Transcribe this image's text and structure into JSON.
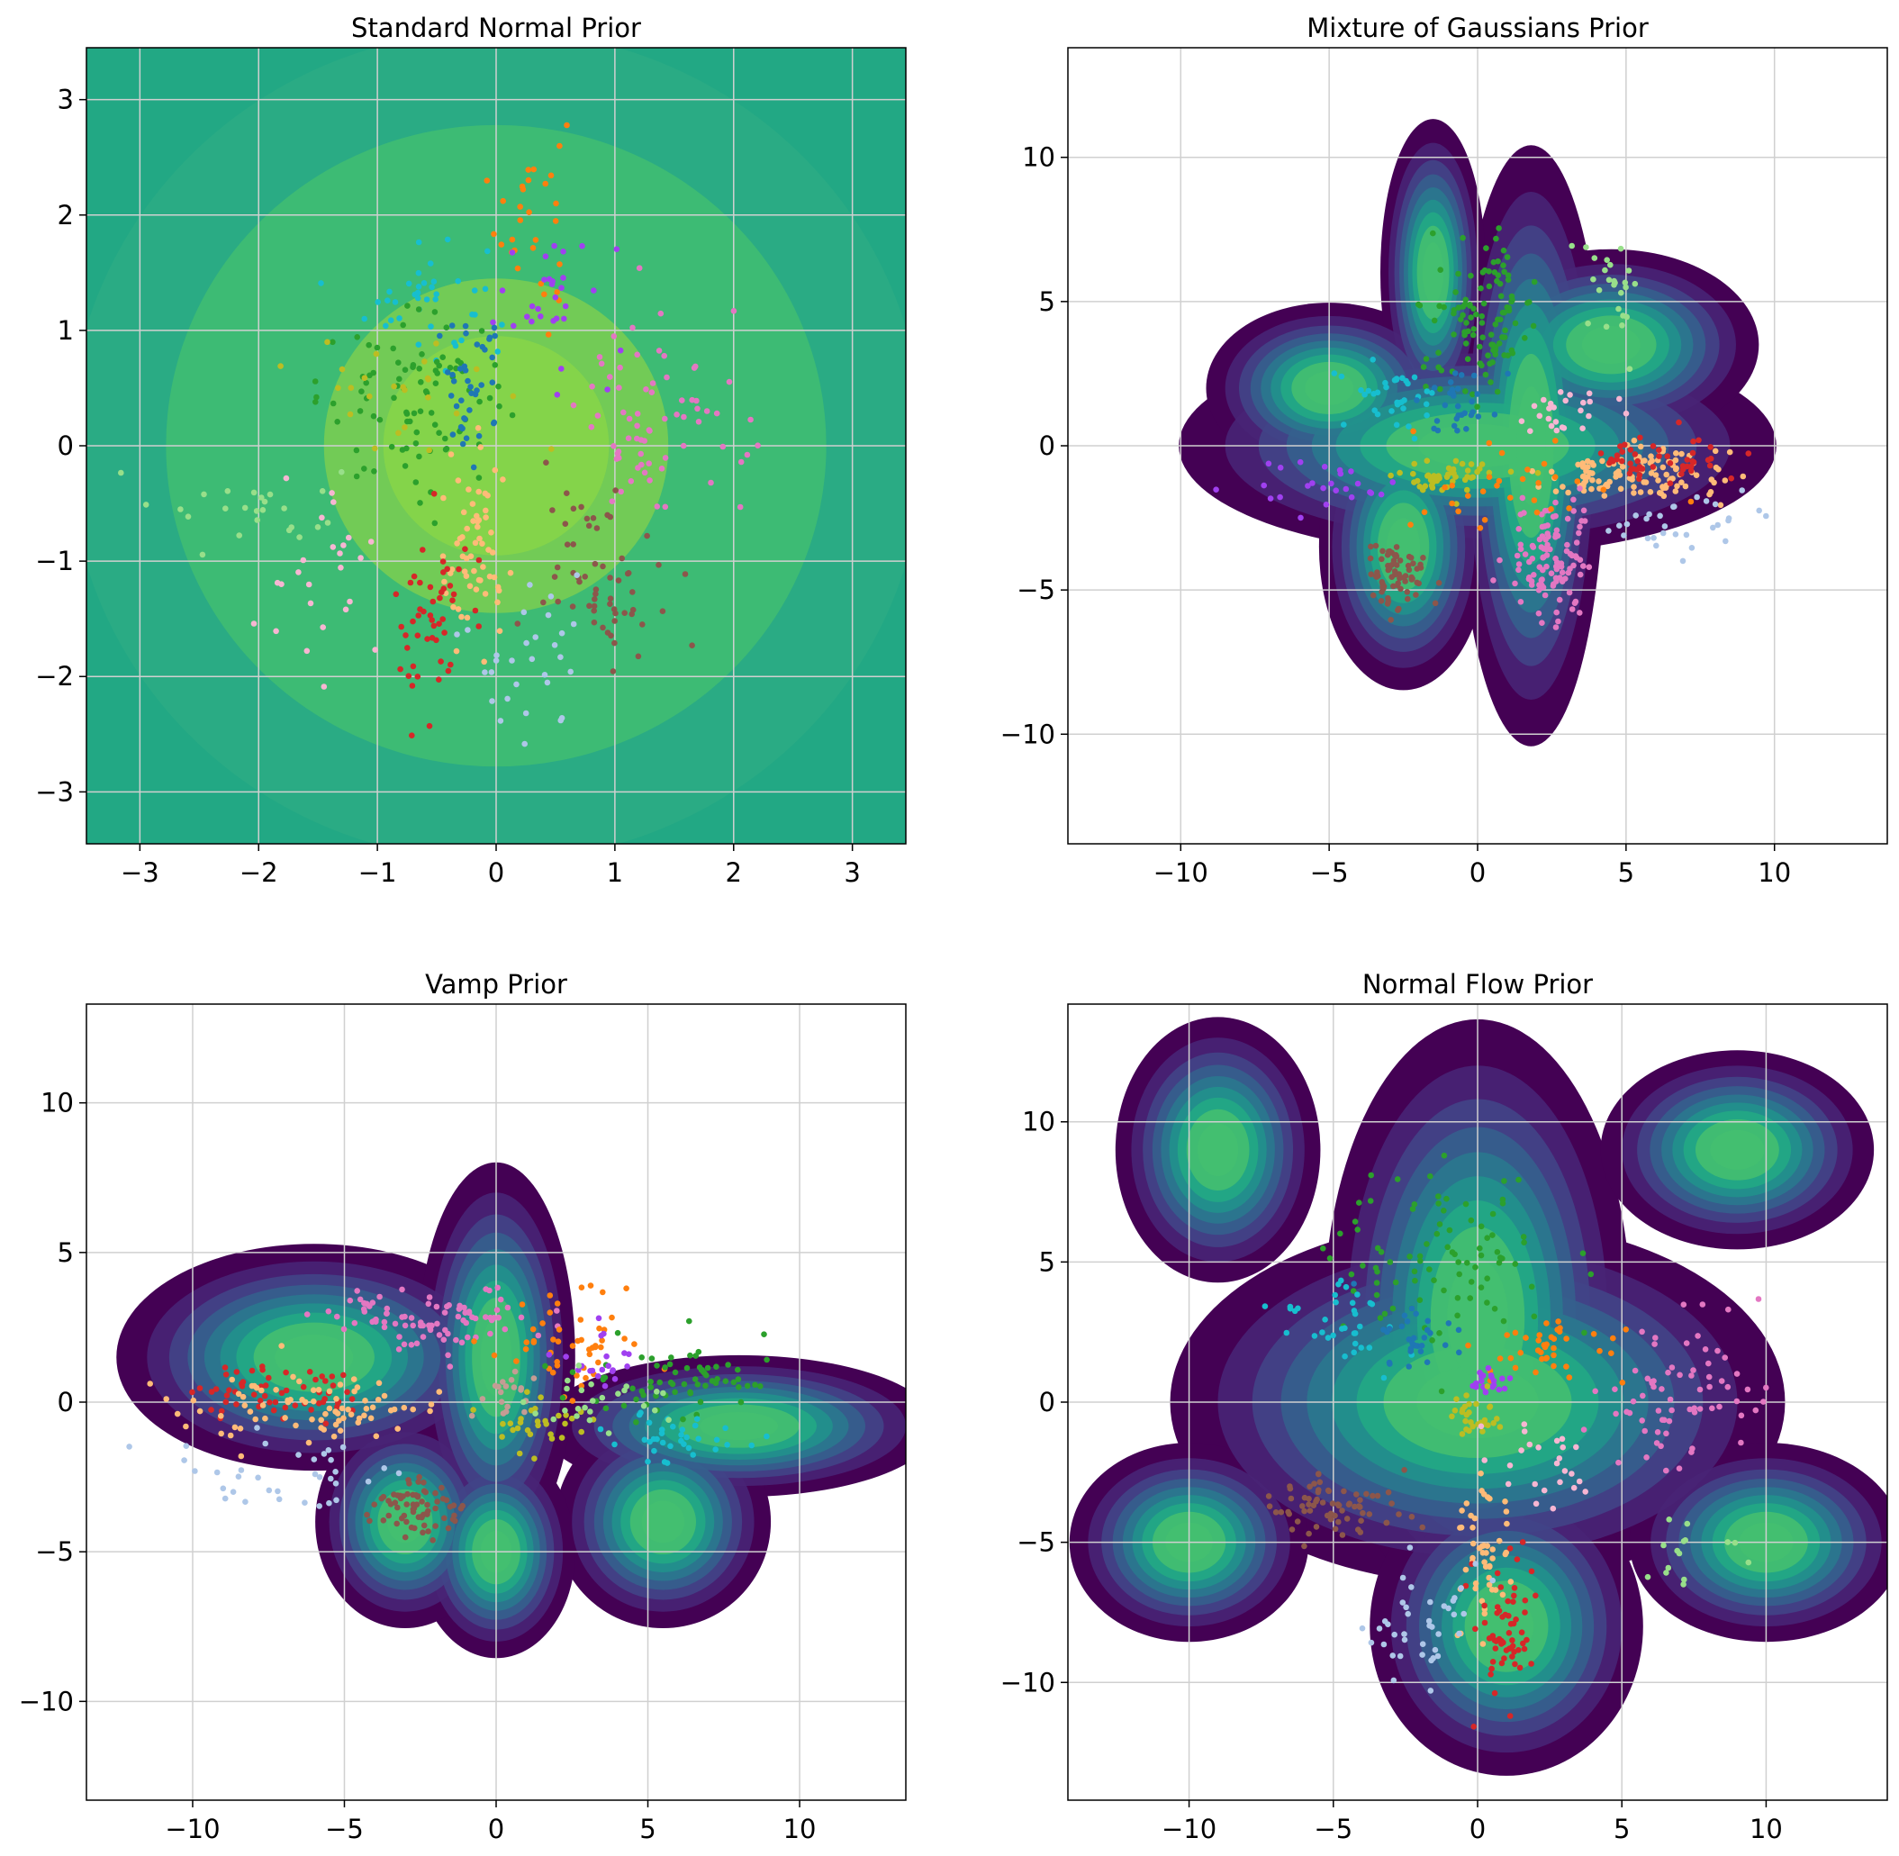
{
  "colors": {
    "viridis": [
      "#440154",
      "#482475",
      "#414487",
      "#355f8d",
      "#2a788e",
      "#21918c",
      "#22a884",
      "#44bf70",
      "#7ad151",
      "#bddf26"
    ],
    "clusters": [
      "#1f77b4",
      "#ff7f0e",
      "#2ca02c",
      "#d62728",
      "#9467bd",
      "#8c564b",
      "#e377c2",
      "#bcbd22",
      "#17becf",
      "#aec7e8",
      "#ffbb78",
      "#98df8a",
      "#f7b6d2",
      "#a040f0",
      "#c49c94"
    ]
  },
  "chart_data": [
    {
      "id": "standard-normal",
      "type": "scatter",
      "title": "Standard Normal Prior",
      "xlim": [
        -3.45,
        3.45
      ],
      "ylim": [
        -3.45,
        3.45
      ],
      "xticks": [
        -3,
        -2,
        -1,
        0,
        1,
        2,
        3
      ],
      "yticks": [
        -3,
        -2,
        -1,
        0,
        1,
        2,
        3
      ],
      "grid": true,
      "density": {
        "background": "#22a884",
        "levels": [
          {
            "r": 3.6,
            "color": "#2aab84"
          },
          {
            "r": 2.78,
            "color": "#3dbb74"
          },
          {
            "r": 1.45,
            "color": "#72cb56"
          },
          {
            "r": 0.95,
            "color": "#84d44a"
          }
        ]
      },
      "clusters": [
        {
          "color": "#ff7f0e",
          "cx": 0.3,
          "cy": 2.0,
          "sx": 0.15,
          "sy": 0.5,
          "n": 30
        },
        {
          "color": "#a040f0",
          "cx": 0.5,
          "cy": 1.3,
          "sx": 0.3,
          "sy": 0.3,
          "n": 30
        },
        {
          "color": "#17becf",
          "cx": -0.6,
          "cy": 1.3,
          "sx": 0.25,
          "sy": 0.3,
          "n": 40
        },
        {
          "color": "#2ca02c",
          "cx": -0.7,
          "cy": 0.4,
          "sx": 0.4,
          "sy": 0.35,
          "n": 90
        },
        {
          "color": "#1f77b4",
          "cx": -0.2,
          "cy": 0.5,
          "sx": 0.15,
          "sy": 0.3,
          "n": 40
        },
        {
          "color": "#e377c2",
          "cx": 1.4,
          "cy": 0.2,
          "sx": 0.35,
          "sy": 0.45,
          "n": 70
        },
        {
          "color": "#8c564b",
          "cx": 0.9,
          "cy": -1.1,
          "sx": 0.25,
          "sy": 0.35,
          "n": 60
        },
        {
          "color": "#ffbb78",
          "cx": -0.2,
          "cy": -1.0,
          "sx": 0.15,
          "sy": 0.45,
          "n": 60
        },
        {
          "color": "#d62728",
          "cx": -0.55,
          "cy": -1.5,
          "sx": 0.15,
          "sy": 0.45,
          "n": 50
        },
        {
          "color": "#aec7e8",
          "cx": 0.3,
          "cy": -1.8,
          "sx": 0.3,
          "sy": 0.4,
          "n": 30
        },
        {
          "color": "#98df8a",
          "cx": -2.0,
          "cy": -0.5,
          "sx": 0.4,
          "sy": 0.2,
          "n": 25
        },
        {
          "color": "#f7b6d2",
          "cx": -1.5,
          "cy": -1.1,
          "sx": 0.4,
          "sy": 0.4,
          "n": 25
        },
        {
          "color": "#bcbd22",
          "cx": -1.0,
          "cy": 0.6,
          "sx": 0.5,
          "sy": 0.3,
          "n": 25
        }
      ]
    },
    {
      "id": "mixture-of-gaussians",
      "type": "scatter",
      "title": "Mixture of Gaussians Prior",
      "xlim": [
        -13.8,
        13.8
      ],
      "ylim": [
        -13.8,
        13.8
      ],
      "xticks": [
        -10,
        -5,
        0,
        5,
        10
      ],
      "yticks": [
        -10,
        -5,
        0,
        5,
        10
      ],
      "grid": true,
      "density": {
        "components": [
          {
            "x": 0,
            "y": 0,
            "sx": 8.5,
            "sy": 3.2
          },
          {
            "x": 1.8,
            "y": 0,
            "sx": 2.1,
            "sy": 8.8
          },
          {
            "x": 4.5,
            "y": 3.5,
            "sx": 4.2,
            "sy": 2.8
          },
          {
            "x": -2.5,
            "y": -3.5,
            "sx": 2.4,
            "sy": 4.2
          },
          {
            "x": -5,
            "y": 2,
            "sx": 3.5,
            "sy": 2.5
          },
          {
            "x": -1.5,
            "y": 6,
            "sx": 1.5,
            "sy": 4.5
          }
        ]
      },
      "clusters": [
        {
          "color": "#2ca02c",
          "cx": 0.2,
          "cy": 4.5,
          "sx": 0.9,
          "sy": 1.3,
          "n": 110
        },
        {
          "color": "#98df8a",
          "cx": 4.5,
          "cy": 5.5,
          "sx": 0.5,
          "sy": 0.8,
          "n": 25
        },
        {
          "color": "#17becf",
          "cx": -2.8,
          "cy": 1.8,
          "sx": 1.0,
          "sy": 0.6,
          "n": 35
        },
        {
          "color": "#1f77b4",
          "cx": -0.5,
          "cy": 1.5,
          "sx": 0.5,
          "sy": 0.6,
          "n": 30
        },
        {
          "color": "#ffbb78",
          "cx": 5.0,
          "cy": -1.0,
          "sx": 1.6,
          "sy": 0.5,
          "n": 120
        },
        {
          "color": "#d62728",
          "cx": 6.0,
          "cy": -0.5,
          "sx": 1.3,
          "sy": 0.4,
          "n": 50
        },
        {
          "color": "#e377c2",
          "cx": 2.5,
          "cy": -4.0,
          "sx": 0.7,
          "sy": 1.0,
          "n": 110
        },
        {
          "color": "#8c564b",
          "cx": -2.8,
          "cy": -4.5,
          "sx": 0.5,
          "sy": 0.7,
          "n": 70
        },
        {
          "color": "#bcbd22",
          "cx": -1.0,
          "cy": -1.1,
          "sx": 0.8,
          "sy": 0.25,
          "n": 50
        },
        {
          "color": "#ff7f0e",
          "cx": 0.5,
          "cy": -1.5,
          "sx": 1.8,
          "sy": 0.8,
          "n": 30
        },
        {
          "color": "#a040f0",
          "cx": -5.0,
          "cy": -1.2,
          "sx": 1.8,
          "sy": 0.4,
          "n": 25
        },
        {
          "color": "#aec7e8",
          "cx": 7.0,
          "cy": -2.8,
          "sx": 1.2,
          "sy": 0.5,
          "n": 30
        },
        {
          "color": "#f7b6d2",
          "cx": 3.0,
          "cy": 1.2,
          "sx": 1.0,
          "sy": 0.6,
          "n": 25
        }
      ]
    },
    {
      "id": "vamp",
      "type": "scatter",
      "title": "Vamp Prior",
      "xlim": [
        -13.5,
        13.5
      ],
      "ylim": [
        -13.3,
        13.3
      ],
      "xticks": [
        -10,
        -5,
        0,
        5,
        10
      ],
      "yticks": [
        -10,
        -5,
        0,
        5,
        10
      ],
      "grid": true,
      "density": {
        "components": [
          {
            "x": -6,
            "y": 1.5,
            "sx": 5.5,
            "sy": 3.2
          },
          {
            "x": 8,
            "y": -0.8,
            "sx": 5.5,
            "sy": 2.0
          },
          {
            "x": 0,
            "y": 1.5,
            "sx": 2.2,
            "sy": 5.5
          },
          {
            "x": 5.5,
            "y": -4,
            "sx": 3.0,
            "sy": 3.0
          },
          {
            "x": 0,
            "y": -5,
            "sx": 2.2,
            "sy": 3.0
          },
          {
            "x": -3,
            "y": -4,
            "sx": 2.5,
            "sy": 3.0
          }
        ]
      },
      "clusters": [
        {
          "color": "#e377c2",
          "cx": -2.0,
          "cy": 2.8,
          "sx": 1.8,
          "sy": 0.5,
          "n": 90
        },
        {
          "color": "#ff7f0e",
          "cx": 2.5,
          "cy": 2.0,
          "sx": 1.2,
          "sy": 0.9,
          "n": 50
        },
        {
          "color": "#d62728",
          "cx": -7.0,
          "cy": 0.3,
          "sx": 1.6,
          "sy": 0.5,
          "n": 60
        },
        {
          "color": "#ffbb78",
          "cx": -6.0,
          "cy": -0.2,
          "sx": 2.0,
          "sy": 0.6,
          "n": 80
        },
        {
          "color": "#8c564b",
          "cx": -2.5,
          "cy": -3.5,
          "sx": 0.8,
          "sy": 0.5,
          "n": 70
        },
        {
          "color": "#2ca02c",
          "cx": 6.0,
          "cy": 0.8,
          "sx": 1.6,
          "sy": 0.6,
          "n": 70
        },
        {
          "color": "#17becf",
          "cx": 6.0,
          "cy": -1.2,
          "sx": 1.0,
          "sy": 0.4,
          "n": 35
        },
        {
          "color": "#a040f0",
          "cx": 3.5,
          "cy": 1.5,
          "sx": 0.6,
          "sy": 0.6,
          "n": 20
        },
        {
          "color": "#aec7e8",
          "cx": -7.5,
          "cy": -2.5,
          "sx": 1.8,
          "sy": 0.5,
          "n": 35
        },
        {
          "color": "#bcbd22",
          "cx": 1.5,
          "cy": -0.8,
          "sx": 1.0,
          "sy": 0.6,
          "n": 30
        },
        {
          "color": "#c49c94",
          "cx": 0.3,
          "cy": 0.3,
          "sx": 0.5,
          "sy": 0.4,
          "n": 20
        },
        {
          "color": "#98df8a",
          "cx": 3.0,
          "cy": 0.2,
          "sx": 1.5,
          "sy": 0.6,
          "n": 25
        }
      ]
    },
    {
      "id": "normal-flow",
      "type": "scatter",
      "title": "Normal Flow Prior",
      "xlim": [
        -14.2,
        14.2
      ],
      "ylim": [
        -14.2,
        14.2
      ],
      "xticks": [
        -10,
        -5,
        0,
        5,
        10
      ],
      "yticks": [
        -10,
        -5,
        0,
        5,
        10
      ],
      "grid": true,
      "density": {
        "components": [
          {
            "x": 0,
            "y": 0,
            "sx": 9.0,
            "sy": 5.5
          },
          {
            "x": 0,
            "y": 3,
            "sx": 4.5,
            "sy": 9.0
          },
          {
            "x": 1,
            "y": -8,
            "sx": 4.0,
            "sy": 4.5
          },
          {
            "x": 10,
            "y": -5,
            "sx": 4.0,
            "sy": 3.0
          },
          {
            "x": -9,
            "y": 9,
            "sx": 3.0,
            "sy": 4.0
          },
          {
            "x": 9,
            "y": 9,
            "sx": 4.0,
            "sy": 3.0
          },
          {
            "x": -10,
            "y": -5,
            "sx": 3.5,
            "sy": 3.0
          }
        ]
      },
      "clusters": [
        {
          "color": "#2ca02c",
          "cx": -1.0,
          "cy": 5.0,
          "sx": 2.0,
          "sy": 1.8,
          "n": 90
        },
        {
          "color": "#17becf",
          "cx": -5.0,
          "cy": 2.8,
          "sx": 1.2,
          "sy": 0.8,
          "n": 35
        },
        {
          "color": "#1f77b4",
          "cx": -2.0,
          "cy": 2.5,
          "sx": 0.8,
          "sy": 0.8,
          "n": 30
        },
        {
          "color": "#ff7f0e",
          "cx": 2.5,
          "cy": 2.0,
          "sx": 1.2,
          "sy": 0.6,
          "n": 40
        },
        {
          "color": "#a040f0",
          "cx": 0.3,
          "cy": 0.8,
          "sx": 0.4,
          "sy": 0.25,
          "n": 20
        },
        {
          "color": "#bcbd22",
          "cx": 0.0,
          "cy": -0.5,
          "sx": 0.6,
          "sy": 0.4,
          "n": 30
        },
        {
          "color": "#e377c2",
          "cx": 7.0,
          "cy": 0.5,
          "sx": 1.5,
          "sy": 1.5,
          "n": 70
        },
        {
          "color": "#8c564b",
          "cx": -5.0,
          "cy": -3.8,
          "sx": 1.2,
          "sy": 0.6,
          "n": 70
        },
        {
          "color": "#ffbb78",
          "cx": 0.0,
          "cy": -5.5,
          "sx": 0.5,
          "sy": 1.5,
          "n": 50
        },
        {
          "color": "#d62728",
          "cx": 1.0,
          "cy": -8.0,
          "sx": 0.6,
          "sy": 1.5,
          "n": 60
        },
        {
          "color": "#aec7e8",
          "cx": -2.0,
          "cy": -8.0,
          "sx": 1.0,
          "sy": 1.2,
          "n": 40
        },
        {
          "color": "#98df8a",
          "cx": 7.0,
          "cy": -5.5,
          "sx": 1.2,
          "sy": 0.6,
          "n": 15
        },
        {
          "color": "#f7b6d2",
          "cx": 2.5,
          "cy": -2.0,
          "sx": 1.0,
          "sy": 0.8,
          "n": 25
        }
      ]
    }
  ]
}
